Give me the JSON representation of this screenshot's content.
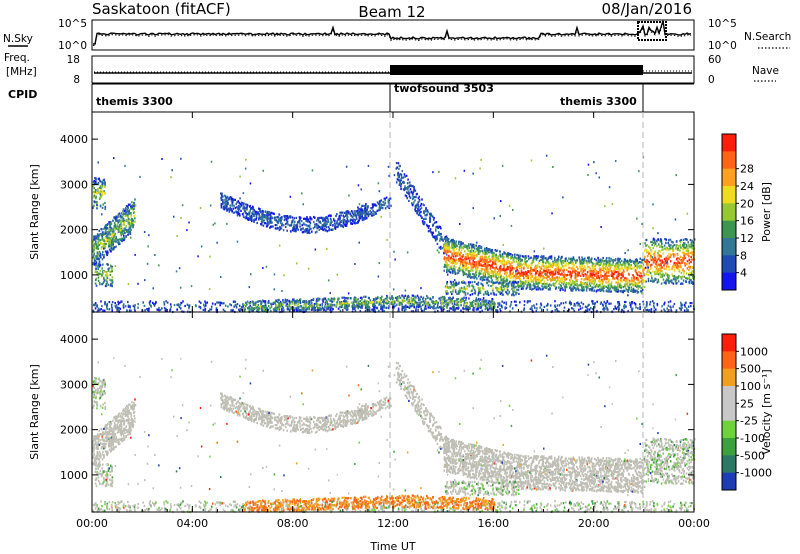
{
  "header": {
    "station": "Saskatoon (fitACF)",
    "beam": "Beam 12",
    "date": "08/Jan/2016"
  },
  "nsky_panel": {
    "label": "N.Sky",
    "right_label": "N.Search",
    "left_ticks": [
      "10^5",
      "10^0"
    ],
    "right_ticks": [
      "10^5",
      "10^0"
    ]
  },
  "freq_panel": {
    "label_line1": "Freq.",
    "label_line2": "[MHz]",
    "right_label": "Nave",
    "left_ticks": [
      "18",
      "8"
    ],
    "right_ticks": [
      "60",
      "0"
    ]
  },
  "cpid": {
    "label": "CPID",
    "segments": [
      {
        "name": "themis 3300",
        "start_hr": 0,
        "end_hr": 12
      },
      {
        "name": "twofsound 3503",
        "start_hr": 12,
        "end_hr": 22
      },
      {
        "name": "themis 3300",
        "start_hr": 22,
        "end_hr": 24
      }
    ]
  },
  "chart_data": [
    {
      "type": "heatmap",
      "parameter": "power",
      "ylabel": "Slant Range [km]",
      "xlabel": "",
      "x_ticks": [
        "00:00",
        "04:00",
        "08:00",
        "12:00",
        "16:00",
        "20:00",
        "00:00"
      ],
      "y_ticks": [
        "1000",
        "2000",
        "3000",
        "4000"
      ],
      "xlim": [
        0,
        24
      ],
      "ylim": [
        180,
        4600
      ],
      "colorbar": {
        "label": "Power [dB]",
        "ticks": [
          "4",
          "8",
          "12",
          "16",
          "20",
          "24",
          "28"
        ],
        "colors": [
          "#1414f0",
          "#1e4bb4",
          "#327896",
          "#3c9650",
          "#96c832",
          "#f0dc1e",
          "#ffa01e",
          "#ff6414",
          "#ff1e0a"
        ]
      },
      "features": [
        {
          "t": [
            0,
            1.7
          ],
          "range": [
            1000,
            3300
          ],
          "level": "medium"
        },
        {
          "t": [
            5,
            10.8
          ],
          "range": [
            2000,
            2900
          ],
          "level": "low"
        },
        {
          "t": [
            10.8,
            12
          ],
          "range": [
            2100,
            2600
          ],
          "level": "low"
        },
        {
          "t": [
            12,
            14
          ],
          "range": [
            2000,
            3500
          ],
          "level": "low"
        },
        {
          "t": [
            14,
            22
          ],
          "range": [
            700,
            1800
          ],
          "level": "high"
        },
        {
          "t": [
            22,
            24
          ],
          "range": [
            700,
            2200
          ],
          "level": "high"
        },
        {
          "t": [
            0,
            24
          ],
          "range": [
            180,
            450
          ],
          "level": "low"
        }
      ]
    },
    {
      "type": "heatmap",
      "parameter": "velocity",
      "ylabel": "Slant Range [km]",
      "xlabel": "Time UT",
      "x_ticks": [
        "00:00",
        "04:00",
        "08:00",
        "12:00",
        "16:00",
        "20:00",
        "00:00"
      ],
      "y_ticks": [
        "1000",
        "2000",
        "3000",
        "4000"
      ],
      "xlim": [
        0,
        24
      ],
      "ylim": [
        180,
        4600
      ],
      "colorbar": {
        "label": "Velocity [m s⁻¹]",
        "ticks": [
          "1000",
          "500",
          "100",
          "25",
          "-25",
          "-100",
          "-500",
          "-1000"
        ],
        "colors": [
          "#1e3cb4",
          "#2d7864",
          "#3ca03c",
          "#6ed23c",
          "#c8c8c8",
          "#c8c8c8",
          "#f0a01e",
          "#ff6414",
          "#ff1e0a"
        ]
      },
      "ground_scatter_color": "#bebeb4",
      "features": [
        {
          "t": [
            0,
            1.7
          ],
          "range": [
            1000,
            3300
          ],
          "kind": "ground scatter"
        },
        {
          "t": [
            5,
            12
          ],
          "range": [
            2000,
            2900
          ],
          "kind": "ground scatter"
        },
        {
          "t": [
            14,
            24
          ],
          "range": [
            700,
            2000
          ],
          "kind": "ground scatter"
        },
        {
          "t": [
            6,
            16
          ],
          "range": [
            180,
            600
          ],
          "kind": "negative velocity"
        }
      ]
    }
  ]
}
